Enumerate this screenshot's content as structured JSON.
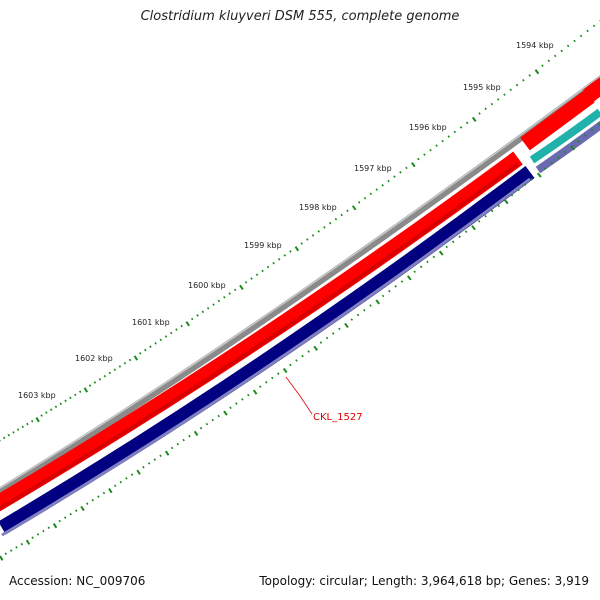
{
  "title": "Clostridium kluyveri DSM 555, complete genome",
  "footer": {
    "accession": "Accession: NC_009706",
    "summary": "Topology: circular; Length: 3,964,618 bp; Genes: 3,919"
  },
  "ruler": {
    "labels": [
      "1594 kbp",
      "1595 kbp",
      "1596 kbp",
      "1597 kbp",
      "1598 kbp",
      "1599 kbp",
      "1600 kbp",
      "1601 kbp",
      "1602 kbp",
      "1603 kbp"
    ],
    "tick_color": "#1a8a1a"
  },
  "features": [
    {
      "name": "CKL_1527",
      "strand": "reverse",
      "color": "#000080"
    }
  ],
  "colors": {
    "backbone": "#808080",
    "forward_gene": "#ff0000",
    "reverse_gene": "#000080",
    "teal_feature": "#20b2aa",
    "label": "#e00000"
  }
}
